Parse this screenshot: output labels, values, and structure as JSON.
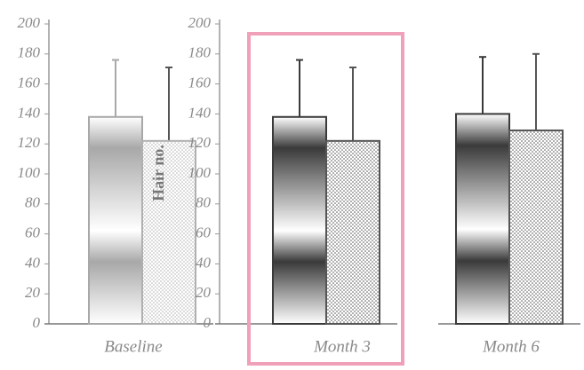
{
  "chart_data": [
    {
      "type": "bar",
      "category": "Baseline",
      "ylim": [
        0,
        200
      ],
      "yticks": [
        0,
        20,
        40,
        60,
        80,
        100,
        120,
        140,
        160,
        180,
        200
      ],
      "series": [
        {
          "color": "#a8a8a8",
          "values": [
            138
          ],
          "errors": [
            38
          ]
        },
        {
          "color": "#b0b0b0",
          "values": [
            122
          ],
          "errors": [
            49
          ]
        }
      ]
    },
    {
      "type": "bar",
      "category": "Month 3",
      "y_label": "Hair no.",
      "ylim": [
        0,
        200
      ],
      "yticks": [
        0,
        20,
        40,
        60,
        80,
        100,
        120,
        140,
        160,
        180,
        200
      ],
      "series": [
        {
          "color": "#3a3a3a",
          "values": [
            138
          ],
          "errors": [
            38
          ]
        },
        {
          "color": "#555555",
          "values": [
            122
          ],
          "errors": [
            49
          ]
        }
      ]
    },
    {
      "type": "bar",
      "category": "Month 6",
      "ylim": [
        0,
        200
      ],
      "series": [
        {
          "color": "#3a3a3a",
          "values": [
            140
          ],
          "errors": [
            38
          ]
        },
        {
          "color": "#555555",
          "values": [
            129
          ],
          "errors": [
            51
          ]
        }
      ]
    }
  ]
}
